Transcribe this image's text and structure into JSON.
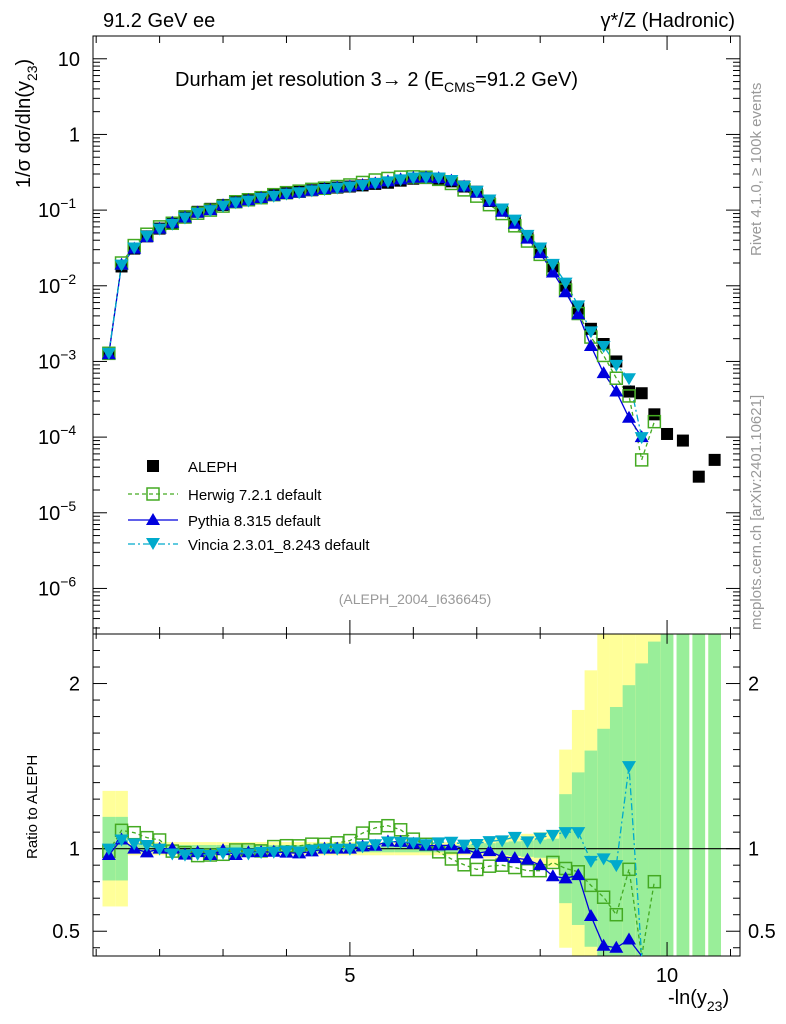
{
  "header": {
    "left": "91.2 GeV ee",
    "right": "γ*/Z (Hadronic)"
  },
  "side_labels": {
    "rivet": "Rivet 4.1.0, ≥ 100k events",
    "mcplots": "mcplots.cern.ch [arXiv:2401.10621]"
  },
  "chart_data": {
    "type": "scatter",
    "title": "Durham jet resolution 3→ 2 (ECMS=91.2 GeV)",
    "title_main": "Durham jet resolution 3→  2 (E",
    "title_sub": "CMS",
    "title_end": "=91.2 GeV)",
    "analysis_id": "(ALEPH_2004_I636645)",
    "xlabel": "-ln(y23)",
    "xlabel_main": "-ln(y",
    "xlabel_sub": "23",
    "xlabel_end": ")",
    "ylabel": "1/σ dσ/dln(y23)",
    "ylabel_main": "1/σ  dσ/dln(y",
    "ylabel_sub": "23",
    "ylabel_end": ")",
    "ratio_ylabel": "Ratio to ALEPH",
    "xlim": [
      0.95,
      11.15
    ],
    "ylim": [
      2.5e-07,
      20
    ],
    "yscale": "log",
    "ratio_ylim": [
      0.35,
      2.3
    ],
    "x_ticks": [
      {
        "value": 5,
        "label": "5"
      },
      {
        "value": 10,
        "label": "10"
      }
    ],
    "y_ticks": [
      {
        "value": 10,
        "label": "10"
      },
      {
        "value": 1,
        "label": "1"
      },
      {
        "value": 0.1,
        "label": "10",
        "exp": "−1"
      },
      {
        "value": 0.01,
        "label": "10",
        "exp": "−2"
      },
      {
        "value": 0.001,
        "label": "10",
        "exp": "−3"
      },
      {
        "value": 0.0001,
        "label": "10",
        "exp": "−4"
      },
      {
        "value": 1e-05,
        "label": "10",
        "exp": "−5"
      },
      {
        "value": 1e-06,
        "label": "10",
        "exp": "−6"
      }
    ],
    "ratio_ticks": [
      {
        "value": 0.5,
        "label": "0.5"
      },
      {
        "value": 1,
        "label": "1"
      },
      {
        "value": 2,
        "label": "2"
      }
    ],
    "series": [
      {
        "name": "ALEPH",
        "color": "#000000",
        "marker": "square",
        "x": [
          1.2,
          1.4,
          1.6,
          1.8,
          2.0,
          2.2,
          2.4,
          2.6,
          2.8,
          3.0,
          3.2,
          3.4,
          3.6,
          3.8,
          4.0,
          4.2,
          4.4,
          4.6,
          4.8,
          5.0,
          5.2,
          5.4,
          5.6,
          5.8,
          6.0,
          6.2,
          6.4,
          6.6,
          6.8,
          7.0,
          7.2,
          7.4,
          7.6,
          7.8,
          8.0,
          8.2,
          8.4,
          8.6,
          8.8,
          9.0,
          9.2,
          9.4,
          9.6,
          9.8,
          10.0,
          10.25,
          10.5,
          10.75
        ],
        "values": [
          0.0013,
          0.018,
          0.031,
          0.045,
          0.057,
          0.068,
          0.083,
          0.095,
          0.104,
          0.117,
          0.13,
          0.138,
          0.148,
          0.158,
          0.167,
          0.175,
          0.183,
          0.19,
          0.198,
          0.205,
          0.212,
          0.222,
          0.23,
          0.245,
          0.26,
          0.265,
          0.26,
          0.24,
          0.205,
          0.175,
          0.132,
          0.1,
          0.07,
          0.045,
          0.03,
          0.018,
          0.01,
          0.005,
          0.0027,
          0.0017,
          0.001,
          0.0004,
          0.00038,
          0.0002,
          0.00011,
          9e-05,
          3e-05,
          5e-05
        ]
      },
      {
        "name": "Herwig 7.2.1 default",
        "color": "#44aa22",
        "marker": "open-square",
        "line": "dashed",
        "x": [
          1.2,
          1.4,
          1.6,
          1.8,
          2.0,
          2.2,
          2.4,
          2.6,
          2.8,
          3.0,
          3.2,
          3.4,
          3.6,
          3.8,
          4.0,
          4.2,
          4.4,
          4.6,
          4.8,
          5.0,
          5.2,
          5.4,
          5.6,
          5.8,
          6.0,
          6.2,
          6.4,
          6.6,
          6.8,
          7.0,
          7.2,
          7.4,
          7.6,
          7.8,
          8.0,
          8.2,
          8.4,
          8.6,
          8.8,
          9.0,
          9.2,
          9.4,
          9.6,
          9.8
        ],
        "values": [
          0.00128,
          0.02,
          0.034,
          0.048,
          0.06,
          0.067,
          0.081,
          0.091,
          0.1,
          0.113,
          0.129,
          0.137,
          0.146,
          0.16,
          0.17,
          0.178,
          0.188,
          0.195,
          0.205,
          0.215,
          0.232,
          0.25,
          0.262,
          0.273,
          0.275,
          0.272,
          0.255,
          0.225,
          0.185,
          0.153,
          0.118,
          0.09,
          0.062,
          0.039,
          0.026,
          0.0165,
          0.0088,
          0.0043,
          0.0021,
          0.0012,
          0.0006,
          0.00035,
          5e-05,
          0.00016
        ]
      },
      {
        "name": "Pythia 8.315 default",
        "color": "#0000dd",
        "marker": "triangle-up",
        "line": "solid",
        "x": [
          1.2,
          1.4,
          1.6,
          1.8,
          2.0,
          2.2,
          2.4,
          2.6,
          2.8,
          3.0,
          3.2,
          3.4,
          3.6,
          3.8,
          4.0,
          4.2,
          4.4,
          4.6,
          4.8,
          5.0,
          5.2,
          5.4,
          5.6,
          5.8,
          6.0,
          6.2,
          6.4,
          6.6,
          6.8,
          7.0,
          7.2,
          7.4,
          7.6,
          7.8,
          8.0,
          8.2,
          8.4,
          8.6,
          8.8,
          9.0,
          9.2,
          9.4,
          9.6
        ],
        "values": [
          0.00125,
          0.019,
          0.031,
          0.044,
          0.057,
          0.068,
          0.08,
          0.093,
          0.1,
          0.116,
          0.125,
          0.135,
          0.145,
          0.155,
          0.163,
          0.17,
          0.18,
          0.19,
          0.198,
          0.205,
          0.215,
          0.226,
          0.24,
          0.255,
          0.268,
          0.27,
          0.265,
          0.245,
          0.205,
          0.17,
          0.13,
          0.095,
          0.066,
          0.042,
          0.027,
          0.015,
          0.0082,
          0.0042,
          0.0016,
          0.0007,
          0.0004,
          0.00018,
          0.0001
        ]
      },
      {
        "name": "Vincia 2.3.01_8.243 default",
        "color": "#00aacc",
        "marker": "triangle-down",
        "line": "dashdot",
        "x": [
          1.2,
          1.4,
          1.6,
          1.8,
          2.0,
          2.2,
          2.4,
          2.6,
          2.8,
          3.0,
          3.2,
          3.4,
          3.6,
          3.8,
          4.0,
          4.2,
          4.4,
          4.6,
          4.8,
          5.0,
          5.2,
          5.4,
          5.6,
          5.8,
          6.0,
          6.2,
          6.4,
          6.6,
          6.8,
          7.0,
          7.2,
          7.4,
          7.6,
          7.8,
          8.0,
          8.2,
          8.4,
          8.6,
          8.8,
          9.0,
          9.2,
          9.4,
          9.6
        ],
        "values": [
          0.0013,
          0.019,
          0.032,
          0.046,
          0.057,
          0.066,
          0.08,
          0.092,
          0.1,
          0.114,
          0.127,
          0.134,
          0.145,
          0.155,
          0.165,
          0.172,
          0.182,
          0.19,
          0.198,
          0.205,
          0.215,
          0.228,
          0.24,
          0.255,
          0.27,
          0.272,
          0.27,
          0.25,
          0.21,
          0.18,
          0.138,
          0.105,
          0.075,
          0.047,
          0.032,
          0.0195,
          0.011,
          0.0055,
          0.0025,
          0.0016,
          0.0009,
          0.0006,
          0.0001
        ]
      }
    ]
  }
}
